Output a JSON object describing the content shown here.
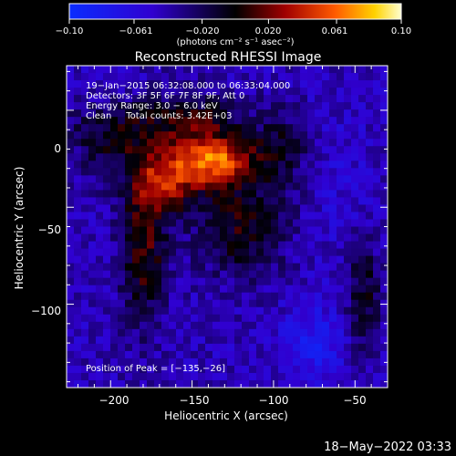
{
  "chart_data": {
    "type": "heatmap",
    "title": "Reconstructed RHESSI Image",
    "xlabel": "Heliocentric X (arcsec)",
    "ylabel": "Heliocentric Y (arcsec)",
    "xlim": [
      -227,
      -30
    ],
    "ylim": [
      -143,
      23
    ],
    "xticks": [
      -200,
      -150,
      -100,
      -50
    ],
    "xtick_labels": [
      "−200",
      "−150",
      "−100",
      "−50"
    ],
    "yticks": [
      0,
      -50,
      -100
    ],
    "ytick_labels": [
      "0",
      "−50",
      "−100"
    ],
    "colorbar": {
      "min": -0.1,
      "max": 0.1,
      "ticks": [
        -0.1,
        -0.061,
        -0.02,
        0.02,
        0.061,
        0.1
      ],
      "tick_labels": [
        "−0.10",
        "−0.061",
        "−0.020",
        "0.020",
        "0.061",
        "0.10"
      ],
      "unit_label": "(photons cm⁻² s⁻¹ asec⁻²)"
    },
    "annotations": [
      "19−Jan−2015 06:32:08.000 to 06:33:04.000",
      "Detectors: 3F 5F 6F 7F 8F 9F, Att 0",
      "Energy Range: 3.0 − 6.0 keV",
      "Clean     Total counts: 3.42E+03"
    ],
    "peak": {
      "label": "Position of Peak = [−135,−26]",
      "x": -135,
      "y": -26
    },
    "sources": [
      {
        "x": -135,
        "y": -26,
        "amp": 0.1,
        "sx": 16,
        "sy": 9
      },
      {
        "x": -165,
        "y": -35,
        "amp": 0.07,
        "sx": 14,
        "sy": 12
      },
      {
        "x": -180,
        "y": -70,
        "amp": 0.055,
        "sx": 10,
        "sy": 28
      },
      {
        "x": -120,
        "y": -60,
        "amp": 0.045,
        "sx": 20,
        "sy": 18
      },
      {
        "x": -200,
        "y": -10,
        "amp": 0.04,
        "sx": 18,
        "sy": 16
      },
      {
        "x": -150,
        "y": -5,
        "amp": 0.045,
        "sx": 22,
        "sy": 10
      },
      {
        "x": -95,
        "y": -20,
        "amp": 0.035,
        "sx": 12,
        "sy": 14
      },
      {
        "x": -45,
        "y": -95,
        "amp": 0.04,
        "sx": 8,
        "sy": 20
      },
      {
        "x": -75,
        "y": -120,
        "amp": -0.03,
        "sx": 14,
        "sy": 14
      },
      {
        "x": -200,
        "y": 10,
        "amp": -0.02,
        "sx": 12,
        "sy": 10
      },
      {
        "x": -60,
        "y": -40,
        "amp": -0.01,
        "sx": 14,
        "sy": 30
      }
    ]
  },
  "footer": {
    "timestamp": "18−May−2022 03:33"
  }
}
